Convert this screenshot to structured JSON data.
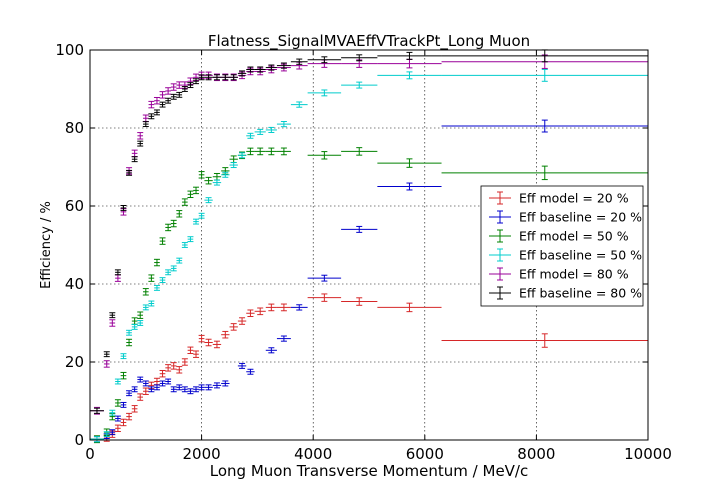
{
  "chart_data": {
    "type": "scatter",
    "title": "Flatness_SignalMVAEffVTrackPt_Long Muon",
    "xlabel": "Long Muon Transverse Momentum / MeV/c",
    "ylabel": "Efficiency / %",
    "xlim": [
      0,
      10000
    ],
    "ylim": [
      0,
      100
    ],
    "x_ticks": [
      "0",
      "2000",
      "4000",
      "6000",
      "8000",
      "10000"
    ],
    "y_ticks": [
      "0",
      "20",
      "40",
      "60",
      "80",
      "100"
    ],
    "grid": true,
    "legend_position": "right",
    "bins": [
      [
        0,
        250
      ],
      [
        250,
        350
      ],
      [
        350,
        450
      ],
      [
        450,
        550
      ],
      [
        550,
        650
      ],
      [
        650,
        750
      ],
      [
        750,
        850
      ],
      [
        850,
        950
      ],
      [
        950,
        1050
      ],
      [
        1050,
        1150
      ],
      [
        1150,
        1250
      ],
      [
        1250,
        1350
      ],
      [
        1350,
        1450
      ],
      [
        1450,
        1550
      ],
      [
        1550,
        1650
      ],
      [
        1650,
        1750
      ],
      [
        1750,
        1850
      ],
      [
        1850,
        1950
      ],
      [
        1950,
        2050
      ],
      [
        2050,
        2200
      ],
      [
        2200,
        2350
      ],
      [
        2350,
        2500
      ],
      [
        2500,
        2650
      ],
      [
        2650,
        2800
      ],
      [
        2800,
        2950
      ],
      [
        2950,
        3150
      ],
      [
        3150,
        3350
      ],
      [
        3350,
        3600
      ],
      [
        3600,
        3900
      ],
      [
        3900,
        4500
      ],
      [
        4500,
        5150
      ],
      [
        5150,
        6300
      ],
      [
        6300,
        10000
      ]
    ],
    "series": [
      {
        "name": "Eff model = 20 %",
        "color": "#d62728",
        "values": [
          0.2,
          0.5,
          1.5,
          3,
          4.5,
          6,
          8,
          11,
          12.5,
          14,
          15,
          17,
          18.5,
          19,
          18,
          20,
          23,
          22,
          26,
          25,
          24.5,
          27,
          29,
          30.5,
          32.5,
          33,
          34,
          34,
          null,
          36.5,
          35.5,
          34,
          25.5
        ]
      },
      {
        "name": "Eff baseline = 20 %",
        "color": "#0000cc",
        "values": [
          0.2,
          1,
          2,
          5.5,
          9,
          12,
          13,
          15.5,
          14.5,
          13,
          13.5,
          14.5,
          15,
          13,
          13.5,
          13,
          12.5,
          13,
          13.5,
          13.5,
          14,
          14.5,
          null,
          19,
          17.5,
          null,
          23,
          26,
          34,
          41.5,
          54,
          65,
          80.5
        ]
      },
      {
        "name": "Eff model = 50 %",
        "color": "#008000",
        "values": [
          0.2,
          2,
          6,
          9.5,
          16.5,
          25,
          30.5,
          32,
          38,
          41.5,
          45.5,
          51,
          54.5,
          55.5,
          58,
          61,
          63,
          64,
          68,
          66.5,
          67.5,
          69,
          72,
          73,
          74,
          74,
          74,
          74,
          null,
          73,
          74,
          71,
          68.5
        ]
      },
      {
        "name": "Eff baseline = 50 %",
        "color": "#00cccc",
        "values": [
          0.2,
          1.5,
          7,
          15,
          21.5,
          27.5,
          29,
          30,
          34,
          35,
          39,
          41,
          43,
          44,
          46,
          50,
          51.5,
          56,
          57.5,
          61.5,
          66,
          68,
          70.5,
          73,
          78,
          79,
          79.5,
          81,
          86,
          89,
          91,
          93.5,
          93.5
        ]
      },
      {
        "name": "Eff model = 80 %",
        "color": "#990099",
        "values": [
          7.5,
          19.5,
          30,
          41.5,
          58.5,
          69,
          73.5,
          78,
          82.5,
          86,
          87,
          88.5,
          89.5,
          90.5,
          91,
          91,
          92,
          93,
          93.5,
          93.5,
          93,
          93,
          93,
          93.5,
          94.5,
          94.5,
          95,
          95.5,
          96,
          96.5,
          96.5,
          96.5,
          97
        ]
      },
      {
        "name": "Eff baseline = 80 %",
        "color": "#000000",
        "values": [
          7.5,
          22,
          32,
          43,
          59.5,
          68.5,
          72,
          76,
          81,
          83,
          84,
          86,
          87,
          88,
          88.5,
          90,
          91,
          92,
          93,
          93,
          93,
          93,
          93,
          94,
          95,
          95,
          95.5,
          96,
          97,
          97.5,
          98,
          98.5,
          98.5
        ]
      }
    ]
  }
}
